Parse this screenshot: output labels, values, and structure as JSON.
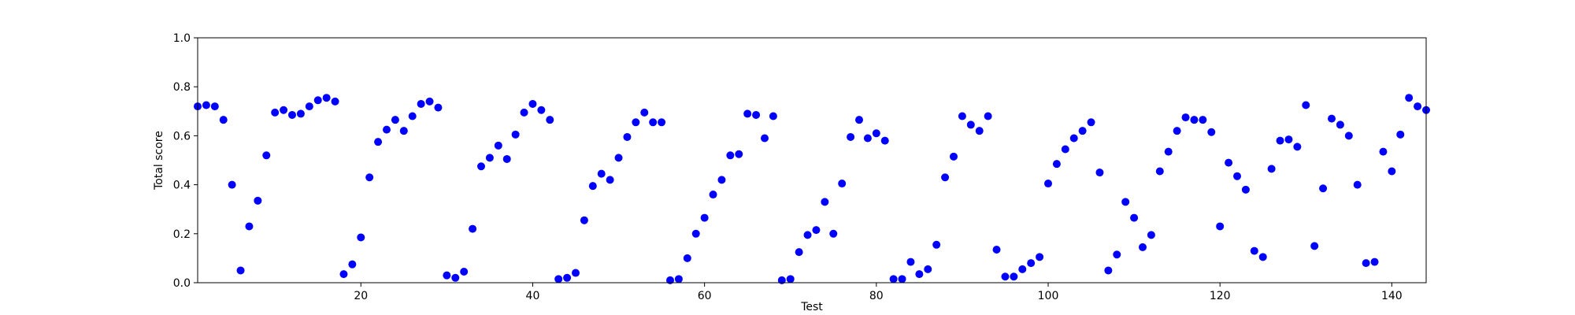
{
  "chart_data": {
    "type": "scatter",
    "title": "",
    "xlabel": "Test",
    "ylabel": "Total score",
    "xlim": [
      1,
      144
    ],
    "ylim": [
      0,
      1.0
    ],
    "xticks": [
      20,
      40,
      60,
      80,
      100,
      120,
      140
    ],
    "yticks": [
      0.0,
      0.2,
      0.4,
      0.6,
      0.8,
      1.0
    ],
    "ytick_labels": [
      "0.0",
      "0.2",
      "0.4",
      "0.6",
      "0.8",
      "1.0"
    ],
    "grid": false,
    "marker_color": "#0000ff",
    "series": [
      {
        "x": [
          1,
          2,
          3,
          4,
          5,
          6,
          7,
          8,
          9,
          10,
          11,
          12,
          13,
          14,
          15,
          16,
          17,
          18,
          19,
          20,
          21,
          22,
          23,
          24,
          25,
          26,
          27,
          28,
          29,
          30,
          31,
          32,
          33,
          34,
          35,
          36,
          37,
          38,
          39,
          40,
          41,
          42,
          43,
          44,
          45,
          46,
          47,
          48,
          49,
          50,
          51,
          52,
          53,
          54,
          55,
          56,
          57,
          58,
          59,
          60,
          61,
          62,
          63,
          64,
          65,
          66,
          67,
          68,
          69,
          70,
          71,
          72,
          73,
          74,
          75,
          76,
          77,
          78,
          79,
          80,
          81,
          82,
          83,
          84,
          85,
          86,
          87,
          88,
          89,
          90,
          91,
          92,
          93,
          94,
          95,
          96,
          97,
          98,
          99,
          100,
          101,
          102,
          103,
          104,
          105,
          106,
          107,
          108,
          109,
          110,
          111,
          112,
          113,
          114,
          115,
          116,
          117,
          118,
          119,
          120,
          121,
          122,
          123,
          124,
          125,
          126,
          127,
          128,
          129,
          130,
          131,
          132,
          133,
          134,
          135,
          136,
          137,
          138,
          139,
          140,
          141,
          142,
          143,
          144
        ],
        "y": [
          0.72,
          0.725,
          0.72,
          0.665,
          0.4,
          0.05,
          0.23,
          0.335,
          0.52,
          0.695,
          0.705,
          0.685,
          0.69,
          0.72,
          0.745,
          0.755,
          0.74,
          0.035,
          0.075,
          0.185,
          0.43,
          0.575,
          0.625,
          0.665,
          0.62,
          0.68,
          0.73,
          0.74,
          0.715,
          0.03,
          0.02,
          0.045,
          0.22,
          0.475,
          0.51,
          0.56,
          0.505,
          0.605,
          0.695,
          0.73,
          0.705,
          0.665,
          0.015,
          0.02,
          0.04,
          0.255,
          0.395,
          0.445,
          0.42,
          0.51,
          0.595,
          0.655,
          0.695,
          0.655,
          0.655,
          0.01,
          0.015,
          0.1,
          0.2,
          0.265,
          0.36,
          0.42,
          0.52,
          0.525,
          0.69,
          0.685,
          0.59,
          0.68,
          0.01,
          0.015,
          0.125,
          0.195,
          0.215,
          0.33,
          0.2,
          0.405,
          0.595,
          0.665,
          0.59,
          0.61,
          0.58,
          0.015,
          0.015,
          0.085,
          0.035,
          0.055,
          0.155,
          0.43,
          0.515,
          0.68,
          0.645,
          0.62,
          0.68,
          0.135,
          0.025,
          0.025,
          0.055,
          0.08,
          0.105,
          0.405,
          0.485,
          0.545,
          0.59,
          0.62,
          0.655,
          0.45,
          0.05,
          0.115,
          0.33,
          0.265,
          0.145,
          0.195,
          0.455,
          0.535,
          0.62,
          0.675,
          0.665,
          0.665,
          0.615,
          0.23,
          0.49,
          0.435,
          0.38,
          0.13,
          0.105,
          0.465,
          0.58,
          0.585,
          0.555,
          0.725,
          0.15,
          0.385,
          0.67,
          0.645,
          0.6,
          0.4,
          0.08,
          0.085,
          0.535,
          0.455,
          0.605,
          0.755,
          0.72,
          0.705
        ]
      }
    ]
  }
}
